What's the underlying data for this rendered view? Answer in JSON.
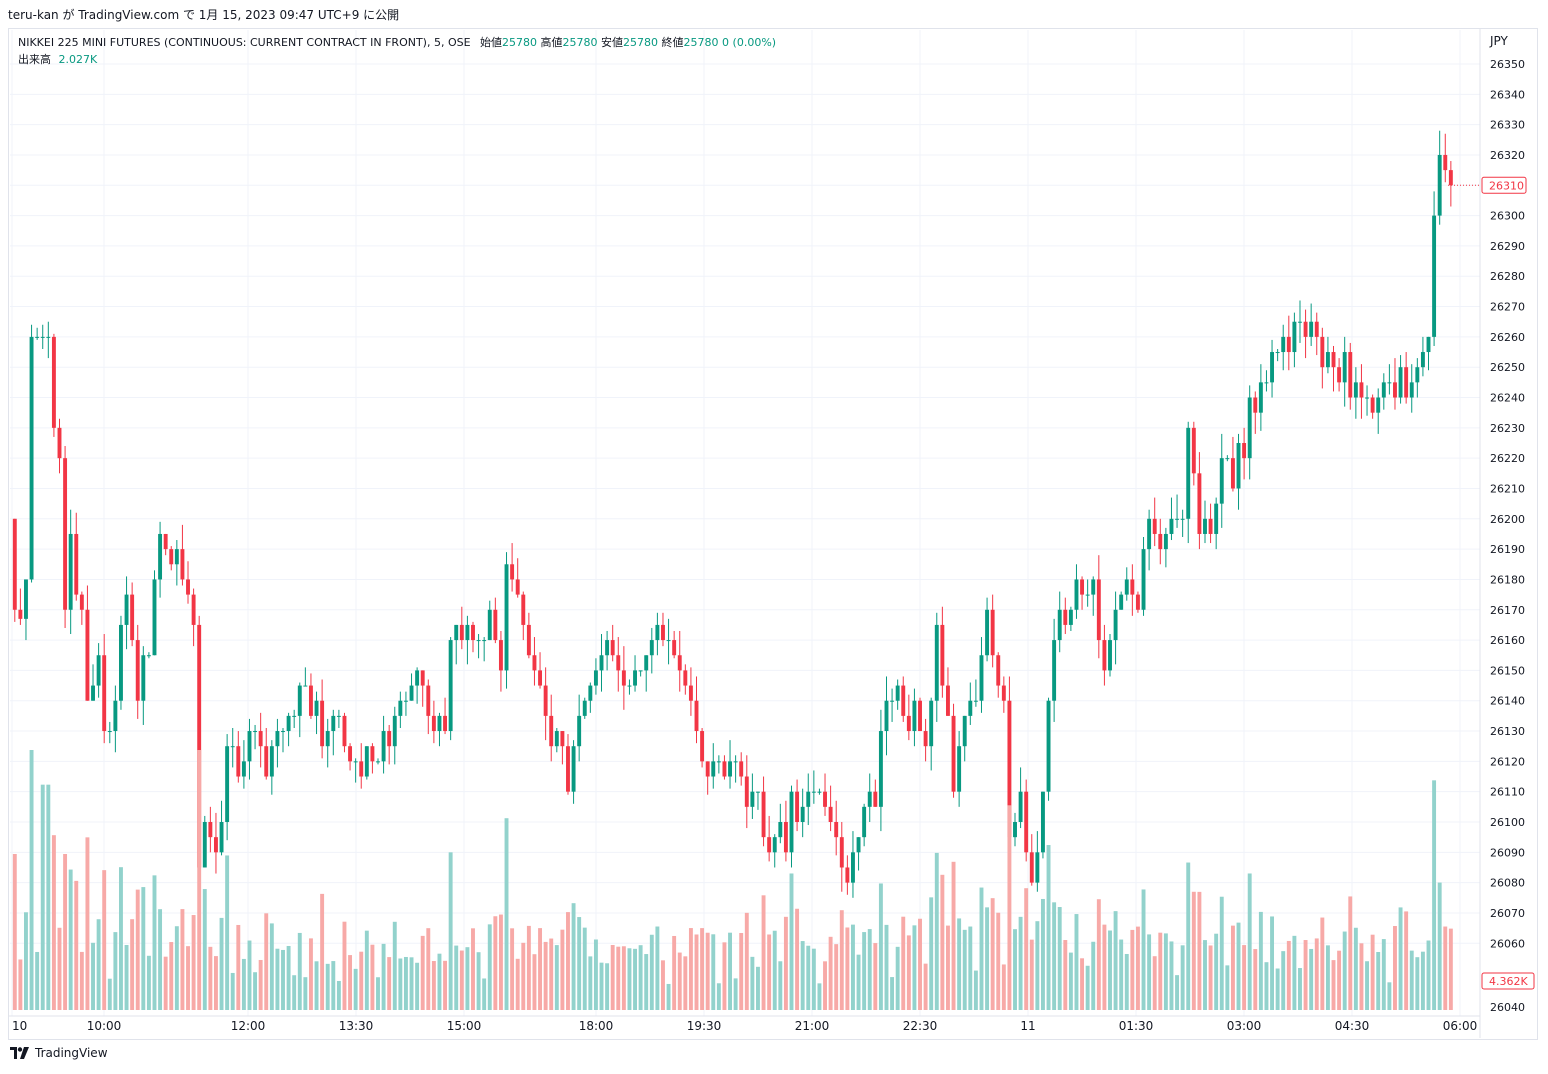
{
  "header": {
    "publish_line": "teru-kan が TradingView.com で 1月 15, 2023 09:47 UTC+9 に公開"
  },
  "legend": {
    "symbol": "NIKKEI 225 MINI FUTURES (CONTINUOUS: CURRENT CONTRACT IN FRONT), 5, OSE",
    "open_label": "始値",
    "open": "25780",
    "high_label": "高値",
    "high": "25780",
    "low_label": "安値",
    "low": "25780",
    "close_label": "終値",
    "close": "25780",
    "change": "0 (0.00%)",
    "volume_label": "出来高",
    "volume": "2.027K"
  },
  "axis": {
    "currency": "JPY",
    "last_price_badge": "26310",
    "volume_badge": "4.362K"
  },
  "footer": {
    "brand": "TradingView"
  },
  "colors": {
    "up": "#089981",
    "down": "#f23645",
    "up_volume": "#92d2cc",
    "down_volume": "#f7a9a7",
    "grid": "#f0f3fa"
  },
  "chart_data": {
    "type": "candlestick",
    "interval": "5",
    "price_ticks": [
      26350,
      26340,
      26330,
      26320,
      26310,
      26300,
      26290,
      26280,
      26270,
      26260,
      26250,
      26240,
      26230,
      26220,
      26210,
      26200,
      26190,
      26180,
      26170,
      26160,
      26150,
      26140,
      26130,
      26120,
      26110,
      26100,
      26090,
      26080,
      26070,
      26060,
      26040
    ],
    "time_ticks": [
      "10",
      "10:00",
      "12:00",
      "13:30",
      "15:00",
      "18:00",
      "19:30",
      "21:00",
      "22:30",
      "11",
      "01:30",
      "03:00",
      "04:30",
      "06:00"
    ],
    "ylim": [
      26040,
      26355
    ],
    "closes": [
      26170,
      26167,
      26180,
      26260,
      26260,
      26260,
      26260,
      26230,
      26220,
      26170,
      26195,
      26175,
      26170,
      26140,
      26145,
      26155,
      26130,
      26130,
      26140,
      26165,
      26175,
      26160,
      26140,
      26155,
      26155,
      26180,
      26195,
      26190,
      26185,
      26190,
      26180,
      26175,
      26165,
      26085,
      26100,
      26095,
      26090,
      26100,
      26125,
      26125,
      26115,
      26120,
      26130,
      26130,
      26125,
      26115,
      26125,
      26130,
      26130,
      26135,
      26135,
      26145,
      26145,
      26135,
      26140,
      26125,
      26130,
      26135,
      26135,
      26125,
      26120,
      26120,
      26115,
      26125,
      26120,
      26120,
      26130,
      26125,
      26135,
      26140,
      26140,
      26145,
      26150,
      26145,
      26135,
      26130,
      26135,
      26130,
      26160,
      26165,
      26160,
      26165,
      26160,
      26160,
      26160,
      26170,
      26160,
      26150,
      26185,
      26180,
      26175,
      26165,
      26155,
      26150,
      26145,
      26135,
      26125,
      26130,
      26125,
      26110,
      26125,
      26135,
      26140,
      26145,
      26150,
      26155,
      26160,
      26155,
      26150,
      26145,
      26145,
      26150,
      26150,
      26155,
      26160,
      26165,
      26160,
      26160,
      26155,
      26150,
      26145,
      26140,
      26130,
      26120,
      26115,
      26120,
      26120,
      26115,
      26120,
      26120,
      26115,
      26105,
      26110,
      26110,
      26095,
      26090,
      26095,
      26100,
      26090,
      26110,
      26100,
      26105,
      26110,
      26110,
      26110,
      26105,
      26100,
      26095,
      26085,
      26080,
      26090,
      26095,
      26105,
      26110,
      26105,
      26130,
      26140,
      26140,
      26145,
      26135,
      26130,
      26140,
      26130,
      26125,
      26140,
      26165,
      26145,
      26135,
      26110,
      26125,
      26135,
      26140,
      26140,
      26155,
      26170,
      26155,
      26145,
      26140,
      26095,
      26100,
      26110,
      26090,
      26080,
      26090,
      26110,
      26140,
      26160,
      26170,
      26165,
      26170,
      26180,
      26175,
      26175,
      26180,
      26160,
      26150,
      26160,
      26170,
      26175,
      26180,
      26175,
      26170,
      26190,
      26200,
      26195,
      26190,
      26195,
      26200,
      26200,
      26200,
      26230,
      26215,
      26195,
      26200,
      26195,
      26205,
      26220,
      26220,
      26210,
      26225,
      26220,
      26240,
      26235,
      26245,
      26245,
      26255,
      26255,
      26260,
      26255,
      26265,
      26265,
      26260,
      26265,
      26260,
      26250,
      26255,
      26250,
      26245,
      26255,
      26240,
      26245,
      26240,
      26240,
      26235,
      26240,
      26245,
      26245,
      26240,
      26250,
      26240,
      26245,
      26250,
      26255,
      26260,
      26300,
      26320,
      26315,
      26310
    ],
    "volume_ylim": [
      0,
      6000
    ]
  }
}
